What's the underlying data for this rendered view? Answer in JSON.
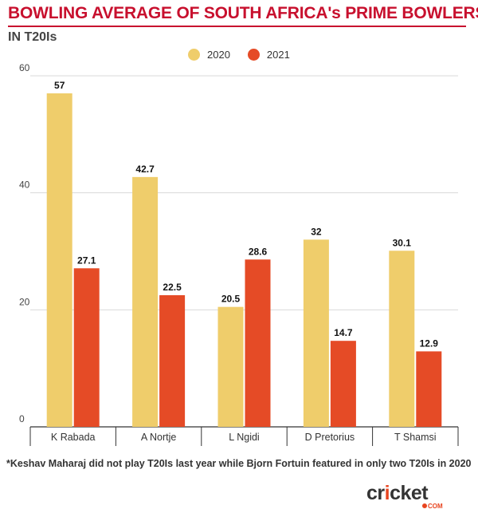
{
  "header": {
    "title": "BOWLING AVERAGE OF SOUTH AFRICA's PRIME BOWLERS",
    "subtitle": "IN T20Is"
  },
  "colors": {
    "title": "#c8102e",
    "series_2020": "#efcd6b",
    "series_2021": "#e54b26",
    "grid": "#d9d9d9"
  },
  "chart_data": {
    "type": "bar",
    "categories": [
      "K Rabada",
      "A Nortje",
      "L Ngidi",
      "D Pretorius",
      "T Shamsi"
    ],
    "series": [
      {
        "name": "2020",
        "values": [
          57,
          42.7,
          20.5,
          32,
          30.1
        ],
        "color": "#efcd6b"
      },
      {
        "name": "2021",
        "values": [
          27.1,
          22.5,
          28.6,
          14.7,
          12.9
        ],
        "color": "#e54b26"
      }
    ],
    "value_labels": {
      "2020": [
        "57",
        "42.7",
        "20.5",
        "32",
        "30.1"
      ],
      "2021": [
        "27.1",
        "22.5",
        "28.6",
        "14.7",
        "12.9"
      ]
    },
    "title": "BOWLING AVERAGE OF SOUTH AFRICA's PRIME BOWLERS",
    "subtitle": "IN T20Is",
    "ylim": [
      0,
      60
    ],
    "yticks": [
      0,
      20,
      40,
      60
    ],
    "ytick_labels": [
      "0",
      "20",
      "40",
      "60"
    ],
    "grid": true,
    "legend_position": "top-center"
  },
  "footnote": "*Keshav Maharaj did not play T20Is last year while Bjorn Fortuin featured in only two T20Is in 2020",
  "brand": {
    "main": "cricket",
    "accent": "i",
    "sub": "COM"
  }
}
